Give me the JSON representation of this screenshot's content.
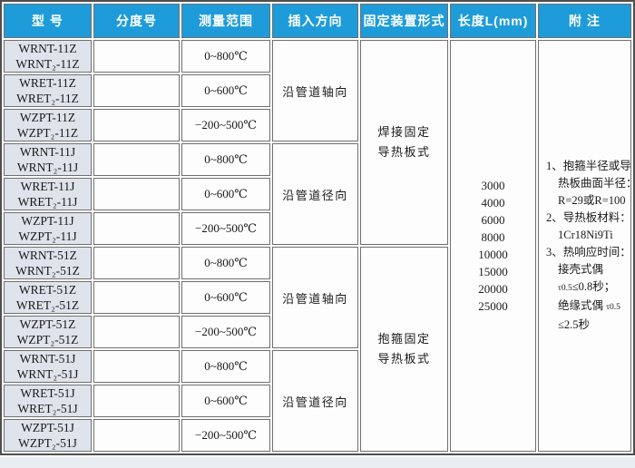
{
  "colors": {
    "header_bg": "#1e9cd9",
    "header_text": "#ffffff",
    "model_cell_bg": "#dfe3eb",
    "cell_bg": "#fdfdfd",
    "grid_border": "#6f6f6f",
    "outer_border": "#4f4f4f",
    "text": "#1a1a1a",
    "page_strip": "#e9eef3"
  },
  "table": {
    "headers": [
      {
        "key": "model",
        "label": "型  号"
      },
      {
        "key": "graduation",
        "label": "分度号"
      },
      {
        "key": "range",
        "label": "测量范围"
      },
      {
        "key": "direction",
        "label": "插入方向"
      },
      {
        "key": "fixing",
        "label": "固定装置形式"
      },
      {
        "key": "length",
        "label": "长度L(mm)"
      },
      {
        "key": "notes",
        "label": "附  注"
      }
    ],
    "rows": [
      {
        "models": [
          "WRNT-11Z",
          "WRNT₂-11Z"
        ],
        "graduation": "",
        "range": "0~800℃"
      },
      {
        "models": [
          "WRET-11Z",
          "WRET₂-11Z"
        ],
        "graduation": "",
        "range": "0~600℃"
      },
      {
        "models": [
          "WZPT-11Z",
          "WZPT₂-11Z"
        ],
        "graduation": "",
        "range": "−200~500℃"
      },
      {
        "models": [
          "WRNT-11J",
          "WRNT₂-11J"
        ],
        "graduation": "",
        "range": "0~800℃"
      },
      {
        "models": [
          "WRET-11J",
          "WRET₂-11J"
        ],
        "graduation": "",
        "range": "0~600℃"
      },
      {
        "models": [
          "WZPT-11J",
          "WZPT₂-11J"
        ],
        "graduation": "",
        "range": "−200~500℃"
      },
      {
        "models": [
          "WRNT-51Z",
          "WRNT₂-51Z"
        ],
        "graduation": "",
        "range": "0~800℃"
      },
      {
        "models": [
          "WRET-51Z",
          "WRET₂-51Z"
        ],
        "graduation": "",
        "range": "0~600℃"
      },
      {
        "models": [
          "WZPT-51Z",
          "WZPT₂-51Z"
        ],
        "graduation": "",
        "range": "−200~500℃"
      },
      {
        "models": [
          "WRNT-51J",
          "WRNT₂-51J"
        ],
        "graduation": "",
        "range": "0~800℃"
      },
      {
        "models": [
          "WRET-51J",
          "WRET₂-51J"
        ],
        "graduation": "",
        "range": "0~600℃"
      },
      {
        "models": [
          "WZPT-51J",
          "WZPT₂-51J"
        ],
        "graduation": "",
        "range": "−200~500℃"
      }
    ],
    "direction_groups": [
      {
        "label": "沿管道轴向",
        "span": 3
      },
      {
        "label": "沿管道径向",
        "span": 3
      },
      {
        "label": "沿管道轴向",
        "span": 3
      },
      {
        "label": "沿管道径向",
        "span": 3
      }
    ],
    "fixing_groups": [
      {
        "lines": [
          "焊接固定",
          "导热板式"
        ],
        "span": 6
      },
      {
        "lines": [
          "抱箍固定",
          "导热板式"
        ],
        "span": 6
      }
    ],
    "lengths": [
      "3000",
      "4000",
      "6000",
      "8000",
      "10000",
      "15000",
      "20000",
      "25000"
    ],
    "notes_lines": [
      {
        "text": "1、抱箍半径或导",
        "indent": 0
      },
      {
        "text": "热板曲面半径：",
        "indent": 1
      },
      {
        "text": "R=29或R=100",
        "indent": 1
      },
      {
        "text": "2、导热板材料：",
        "indent": 0
      },
      {
        "text": "1Cr18Ni9Ti",
        "indent": 1
      },
      {
        "text": "3、热响应时间：",
        "indent": 0
      },
      {
        "text": "接壳式偶",
        "indent": 1
      },
      {
        "text": "τ0.5≤0.8秒；",
        "indent": 1
      },
      {
        "text": "绝缘式偶 τ0.5",
        "indent": 1
      },
      {
        "text": "≤2.5秒",
        "indent": 1
      }
    ]
  }
}
